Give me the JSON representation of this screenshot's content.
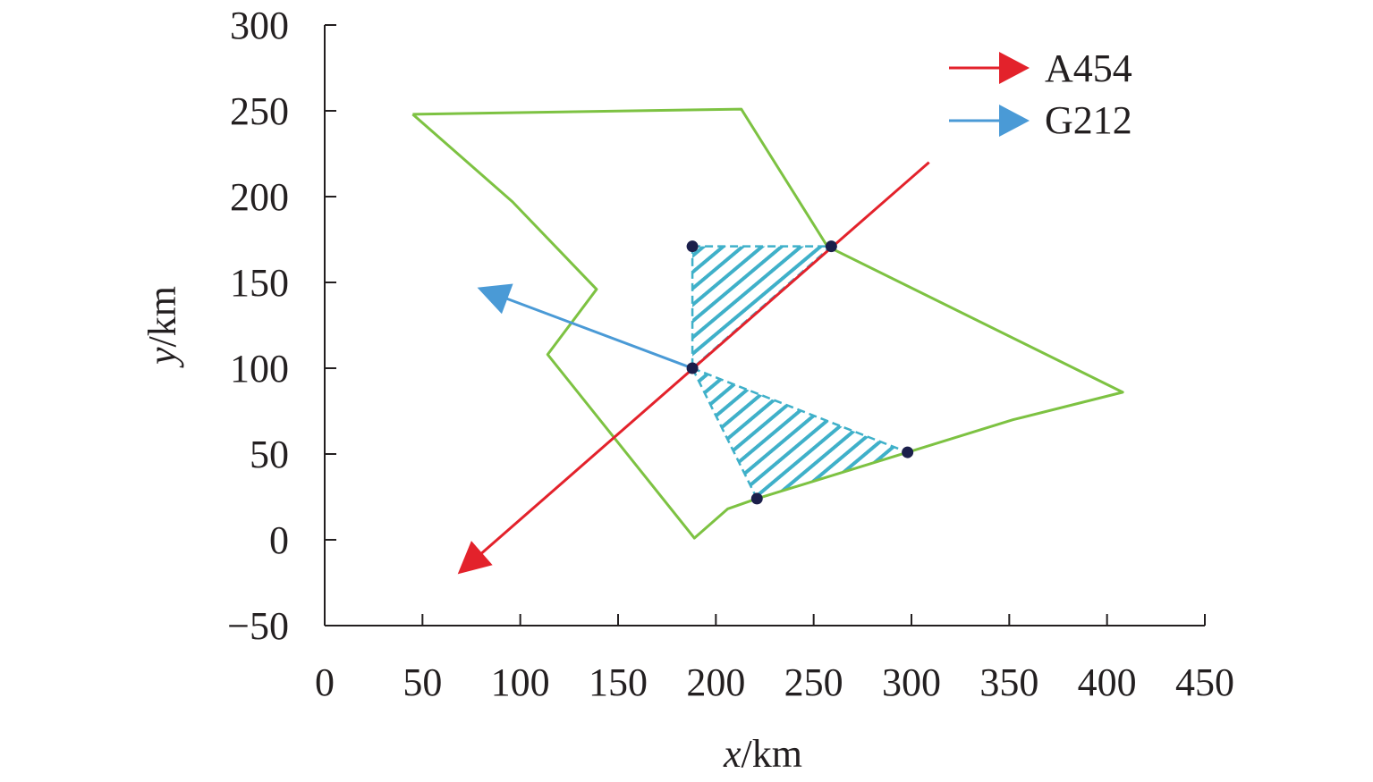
{
  "chart_data": {
    "type": "line",
    "title": "",
    "xlabel_var": "x",
    "xlabel_unit": "/km",
    "ylabel_var": "y",
    "ylabel_unit": "/km",
    "xlim": [
      0,
      450
    ],
    "ylim": [
      -50,
      300
    ],
    "xticks": [
      0,
      50,
      100,
      150,
      200,
      250,
      300,
      350,
      400,
      450
    ],
    "yticks": [
      -50,
      0,
      50,
      100,
      150,
      200,
      250,
      300
    ],
    "xtick_labels": [
      "0",
      "50",
      "100",
      "150",
      "200",
      "250",
      "300",
      "350",
      "400",
      "450"
    ],
    "ytick_labels": [
      "−50",
      "0",
      "50",
      "100",
      "150",
      "200",
      "250",
      "300"
    ],
    "grid": false,
    "legend_position": "top-right",
    "legend": [
      {
        "label": "A454",
        "color": "#e3222b"
      },
      {
        "label": "G212",
        "color": "#4a9ad6"
      }
    ],
    "boundary": {
      "color": "#7dc242",
      "x": [
        45,
        213,
        257,
        408,
        352,
        298,
        221,
        206,
        189,
        114,
        139,
        96,
        45
      ],
      "y": [
        248,
        251,
        171,
        86,
        70,
        51,
        24,
        18,
        1,
        108,
        146,
        197,
        248
      ]
    },
    "tracks": [
      {
        "label": "A454",
        "color": "#e3222b",
        "from": [
          309,
          220
        ],
        "to": [
          68,
          -20
        ]
      },
      {
        "label": "G212",
        "color": "#4a9ad6",
        "from": [
          188,
          100
        ],
        "to": [
          78,
          147
        ]
      }
    ],
    "points": {
      "color": "#1b1f4b",
      "x": [
        188,
        259,
        188,
        298,
        221
      ],
      "y": [
        171,
        171,
        100,
        51,
        24
      ]
    },
    "hatched_regions": [
      {
        "color": "#3fb0c9",
        "x": [
          188,
          259,
          188
        ],
        "y": [
          171,
          171,
          100
        ]
      },
      {
        "color": "#3fb0c9",
        "x": [
          188,
          298,
          221
        ],
        "y": [
          100,
          51,
          24
        ]
      }
    ]
  }
}
